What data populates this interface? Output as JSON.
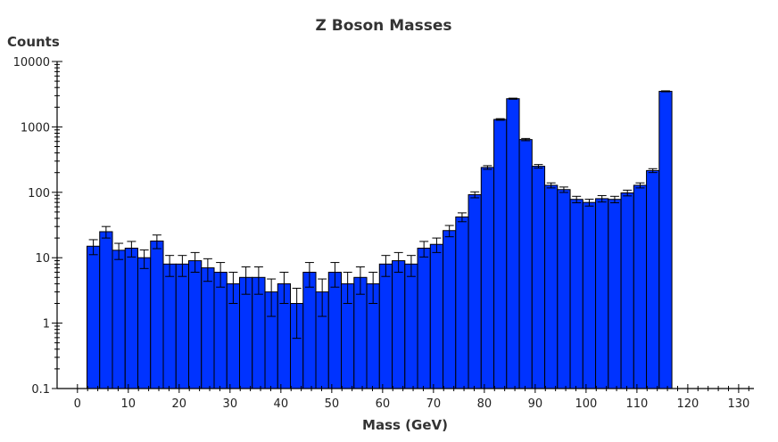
{
  "chart_data": {
    "type": "bar",
    "title": "Z Boson Masses",
    "xlabel": "Mass (GeV)",
    "ylabel": "Counts",
    "y_scale": "log",
    "xlim": [
      -4,
      133
    ],
    "ylim": [
      0.1,
      10000
    ],
    "x_ticks": [
      0,
      10,
      20,
      30,
      40,
      50,
      60,
      70,
      80,
      90,
      100,
      110,
      120,
      130
    ],
    "y_ticks": [
      0.1,
      1,
      10,
      100,
      1000,
      10000
    ],
    "y_tick_labels": [
      "0.1",
      "1",
      "10",
      "100",
      "1000",
      "10000"
    ],
    "bin_width": 2.5,
    "bin_start": 1.875,
    "bar_color": "#0033ff",
    "grid": false,
    "legend": "none",
    "values": [
      15,
      25,
      13,
      14,
      10,
      18,
      8,
      8,
      9,
      7,
      6,
      4,
      5,
      5,
      3,
      4,
      2,
      6,
      3,
      6,
      4,
      5,
      4,
      8,
      9,
      8,
      14,
      16,
      26,
      42,
      92,
      240,
      1300,
      2700,
      640,
      250,
      128,
      110,
      78,
      70,
      80,
      78,
      98,
      128,
      215,
      3500
    ]
  }
}
